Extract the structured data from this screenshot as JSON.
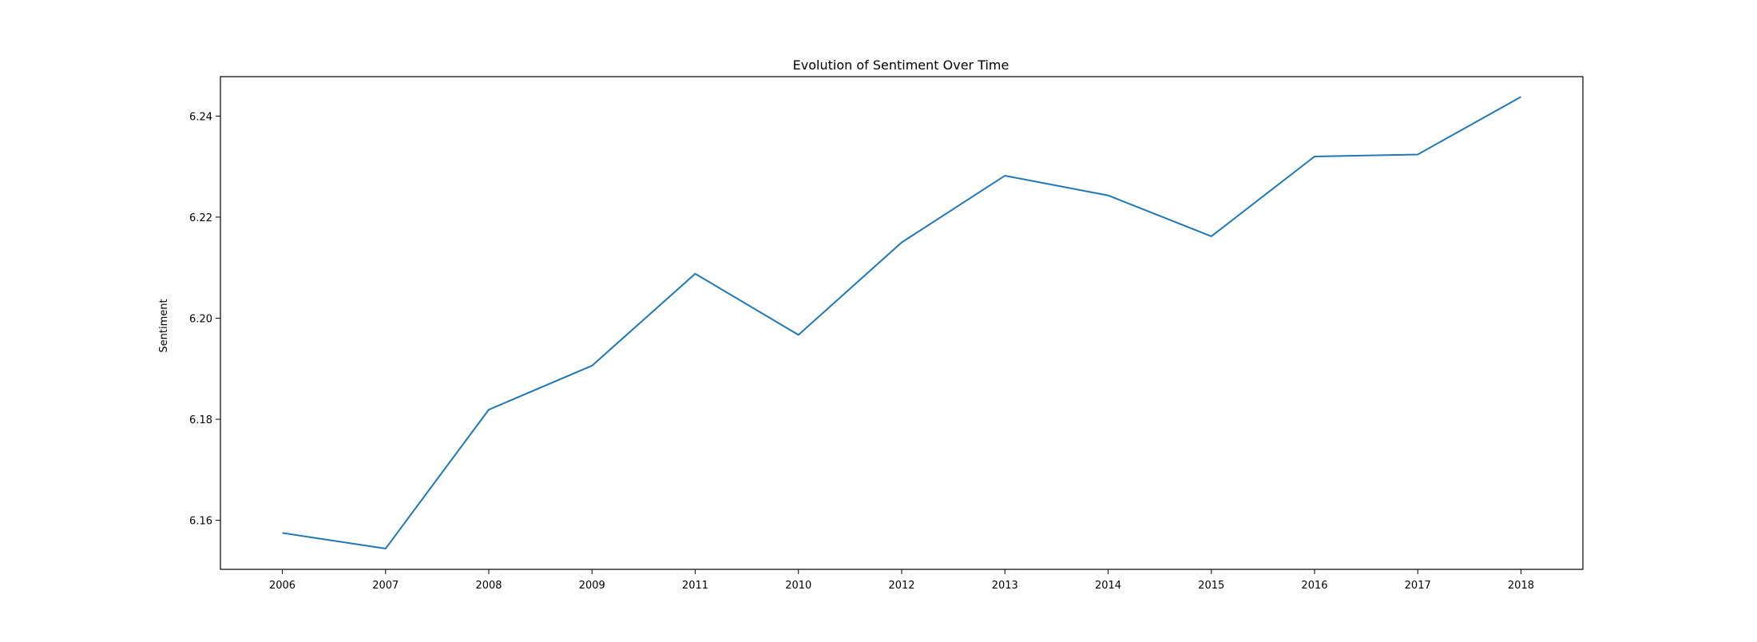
{
  "chart_data": {
    "type": "line",
    "title": "Evolution of Sentiment Over Time",
    "xlabel": "",
    "ylabel": "Sentiment",
    "categories": [
      "2006",
      "2007",
      "2008",
      "2009",
      "2011",
      "2010",
      "2012",
      "2013",
      "2014",
      "2015",
      "2016",
      "2017",
      "2018"
    ],
    "series": [
      {
        "values": [
          6.1575,
          6.1544,
          6.1819,
          6.1906,
          6.2088,
          6.1967,
          6.215,
          6.2282,
          6.2243,
          6.2162,
          6.232,
          6.2324,
          6.2438
        ],
        "color": "#1f77b4"
      }
    ],
    "ylim": [
      6.1503,
      6.2478
    ],
    "yticks": [
      "6.16",
      "6.18",
      "6.20",
      "6.22",
      "6.24"
    ],
    "grid": false,
    "legend": "none"
  }
}
